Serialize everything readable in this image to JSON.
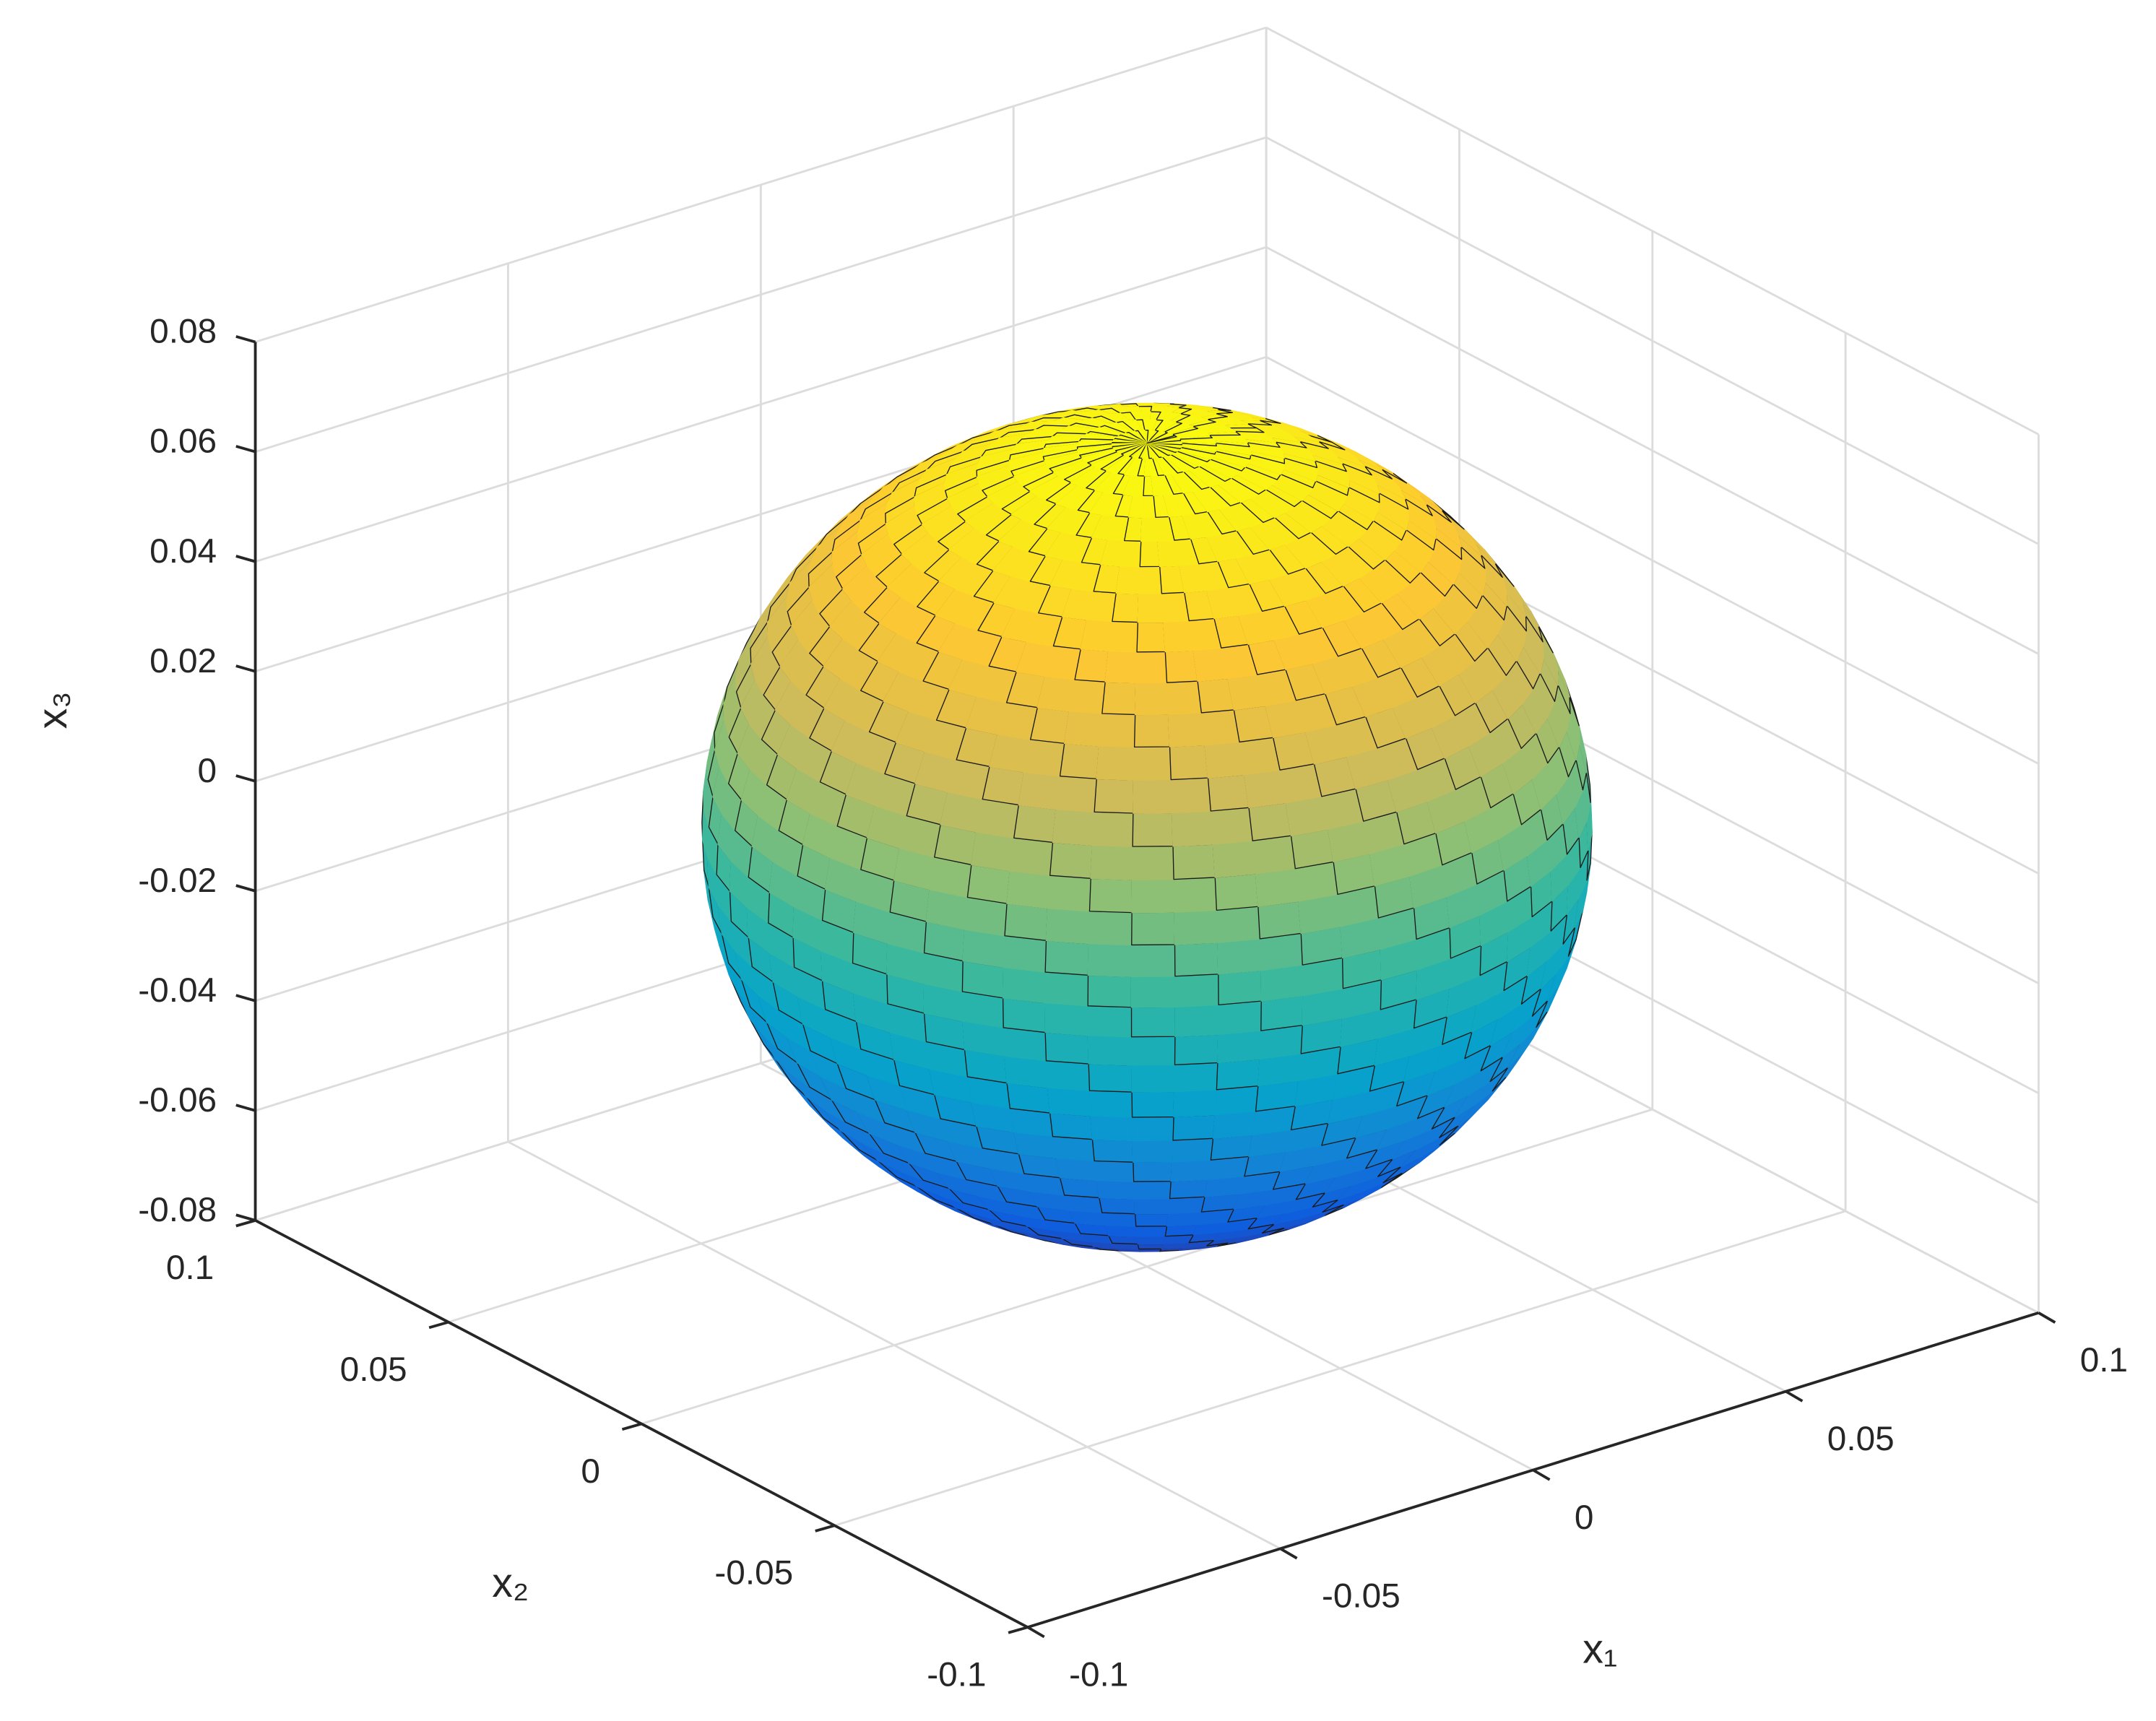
{
  "chart_data": {
    "type": "sphere",
    "radius": 0.07,
    "colormap": "parula",
    "xlabel": "x₁",
    "ylabel": "x₂",
    "zlabel": "x₃",
    "xlim": [
      -0.1,
      0.1
    ],
    "ylim": [
      -0.1,
      0.1
    ],
    "zlim": [
      -0.08,
      0.08
    ],
    "xticks": [
      -0.1,
      -0.05,
      0,
      0.05,
      0.1
    ],
    "yticks": [
      -0.1,
      -0.05,
      0,
      0.05,
      0.1
    ],
    "zticks": [
      -0.08,
      -0.06,
      -0.04,
      -0.02,
      0,
      0.02,
      0.04,
      0.06,
      0.08
    ],
    "grid": true
  }
}
